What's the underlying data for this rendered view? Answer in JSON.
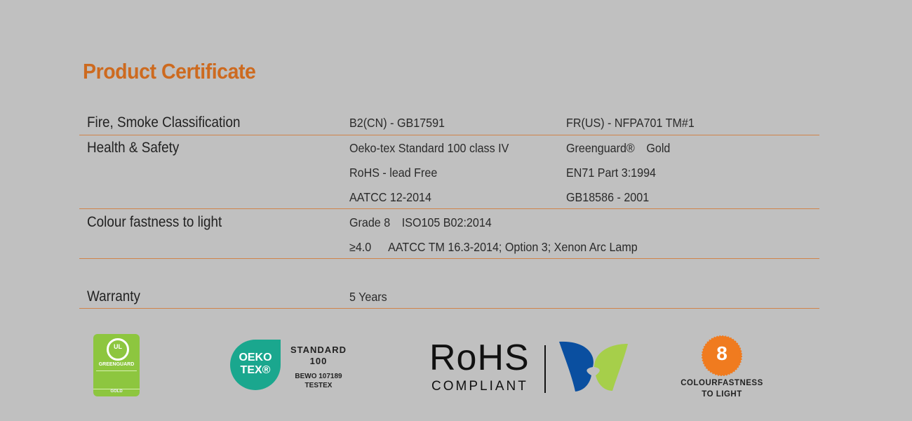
{
  "title": "Product Certificate",
  "rows": [
    {
      "label": "Fire, Smoke Classification",
      "values": [
        [
          "B2(CN) - GB17591",
          "FR(US) - NFPA701 TM#1"
        ]
      ]
    },
    {
      "label": "Health & Safety",
      "values": [
        [
          "Oeko-tex Standard 100 class IV",
          "Greenguard®",
          "Gold"
        ],
        [
          "RoHS - lead Free",
          "EN71 Part 3:1994"
        ],
        [
          "AATCC 12-2014",
          "GB18586 - 2001"
        ]
      ]
    },
    {
      "label": "Colour fastness to light",
      "values": [
        [
          "Grade 8",
          "ISO105 B02:2014"
        ],
        [
          "≥4.0",
          "AATCC TM 16.3-2014; Option 3; Xenon Arc Lamp"
        ]
      ]
    },
    {
      "label": "Warranty",
      "values": [
        [
          "5 Years"
        ]
      ]
    }
  ],
  "logos": {
    "greenguard": {
      "name": "GREENGUARD",
      "badge": "UL",
      "tier": "GOLD",
      "color": "#8dc63f"
    },
    "oekotex": {
      "mark": [
        "OEKO",
        "TEX®"
      ],
      "line1": "STANDARD",
      "line2": "100",
      "line3": "BEWO 107189",
      "line4": "TESTEX",
      "color": "#1aa78e"
    },
    "rohs": {
      "line1": "RoHS",
      "line2": "COMPLIANT",
      "blue": "#0a4fa0",
      "green": "#a6cf4a"
    },
    "colourfastness": {
      "number": "8",
      "line1": "COLOURFASTNESS",
      "line2": "TO LIGHT",
      "color": "#f07b1f"
    }
  }
}
